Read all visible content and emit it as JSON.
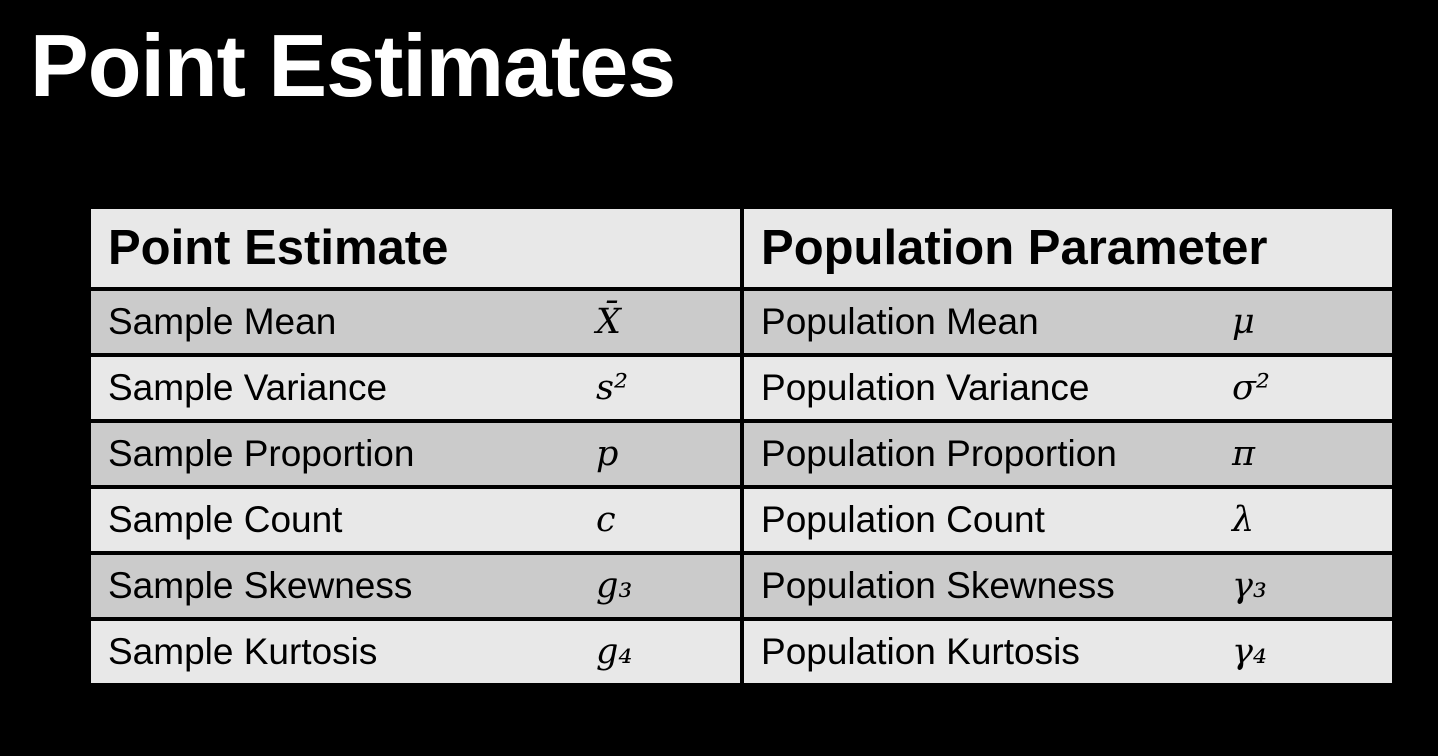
{
  "slide": {
    "title": "Point Estimates"
  },
  "table": {
    "headers": {
      "point_estimate": "Point Estimate",
      "population_parameter": "Population Parameter"
    },
    "rows": [
      {
        "estimate": "Sample Mean",
        "estimate_symbol": "X̄",
        "parameter": "Population Mean",
        "parameter_symbol": "μ"
      },
      {
        "estimate": "Sample Variance",
        "estimate_symbol": "s²",
        "parameter": "Population Variance",
        "parameter_symbol": "σ²"
      },
      {
        "estimate": "Sample Proportion",
        "estimate_symbol": "p",
        "parameter": "Population Proportion",
        "parameter_symbol": "π"
      },
      {
        "estimate": "Sample Count",
        "estimate_symbol": "c",
        "parameter": "Population Count",
        "parameter_symbol": "λ"
      },
      {
        "estimate": "Sample Skewness",
        "estimate_symbol": "g₃",
        "parameter": "Population Skewness",
        "parameter_symbol": "γ₃"
      },
      {
        "estimate": "Sample Kurtosis",
        "estimate_symbol": "g₄",
        "parameter": "Population Kurtosis",
        "parameter_symbol": "γ₄"
      }
    ]
  },
  "colors": {
    "background": "#000000",
    "title": "#ffffff",
    "row_light": "#e8e8e8",
    "row_shaded": "#cbcbcb",
    "grid_line": "#000000"
  }
}
